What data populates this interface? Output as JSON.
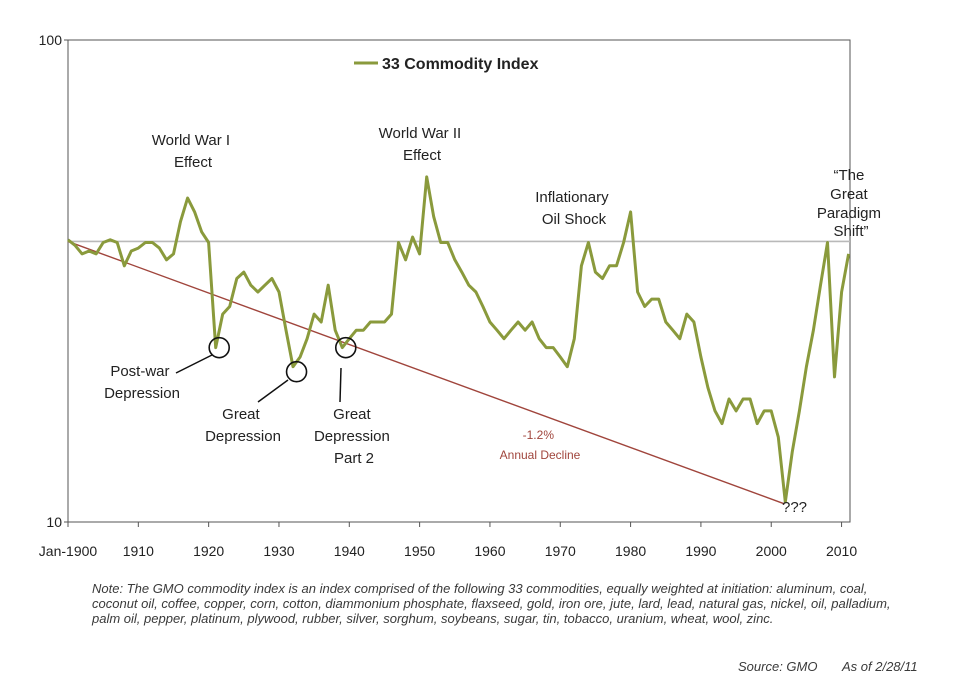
{
  "chart_data": {
    "type": "line",
    "log_scale_y": true,
    "ylim": [
      10,
      100
    ],
    "xlim": [
      1900,
      2011.2
    ],
    "y_tick_labels": [
      "100",
      "10"
    ],
    "x_tick_labels": [
      "Jan-1900",
      "1910",
      "1920",
      "1930",
      "1940",
      "1950",
      "1960",
      "1970",
      "1980",
      "1990",
      "2000",
      "2010"
    ],
    "legend": {
      "label": "33 Commodity Index",
      "placement": "top-center"
    },
    "line_color": "#8a9a3c",
    "trend_color": "#a0453c",
    "reference_color": "#b9b9b9",
    "reference_level": 38.2,
    "trend": {
      "x": [
        1900,
        2001.9
      ],
      "y": [
        38.2,
        10.9
      ]
    },
    "series": [
      {
        "name": "33 Commodity Index",
        "x": [
          1900,
          1901,
          1902,
          1903,
          1904,
          1905,
          1906,
          1907,
          1908,
          1909,
          1910,
          1911,
          1912,
          1913,
          1914,
          1915,
          1916,
          1917,
          1918,
          1919,
          1920,
          1921,
          1922,
          1923,
          1924,
          1925,
          1926,
          1927,
          1928,
          1929,
          1930,
          1931,
          1932,
          1933,
          1934,
          1935,
          1936,
          1937,
          1938,
          1939,
          1940,
          1941,
          1942,
          1943,
          1944,
          1945,
          1946,
          1947,
          1948,
          1949,
          1950,
          1951,
          1952,
          1953,
          1954,
          1955,
          1956,
          1957,
          1958,
          1959,
          1960,
          1961,
          1962,
          1963,
          1964,
          1965,
          1966,
          1967,
          1968,
          1969,
          1970,
          1971,
          1972,
          1973,
          1974,
          1975,
          1976,
          1977,
          1978,
          1979,
          1980,
          1981,
          1982,
          1983,
          1984,
          1985,
          1986,
          1987,
          1988,
          1989,
          1990,
          1991,
          1992,
          1993,
          1994,
          1995,
          1996,
          1997,
          1998,
          1999,
          2000,
          2001,
          2002,
          2003,
          2004,
          2005,
          2006,
          2007,
          2008,
          2009,
          2010,
          2011
        ],
        "y": [
          38.5,
          37.5,
          36,
          36.5,
          36,
          38,
          38.5,
          38,
          34,
          36.5,
          37,
          38,
          38,
          37,
          35,
          36,
          42,
          47,
          44,
          40,
          38,
          23,
          27,
          28,
          32,
          33,
          31,
          30,
          31,
          32,
          30,
          25,
          21,
          22,
          24,
          27,
          26,
          31,
          25,
          23,
          24,
          25,
          25,
          26,
          26,
          26,
          27,
          38,
          35,
          39,
          36,
          52,
          43,
          38,
          38,
          35,
          33,
          31,
          30,
          28,
          26,
          25,
          24,
          25,
          26,
          25,
          26,
          24,
          23,
          23,
          22,
          21,
          24,
          34,
          38,
          33,
          32,
          34,
          34,
          38,
          44,
          30,
          28,
          29,
          29,
          26,
          25,
          24,
          27,
          26,
          22,
          19,
          17,
          16,
          18,
          17,
          18,
          18,
          16,
          17,
          17,
          15,
          11,
          14,
          17,
          21,
          25,
          31,
          38,
          20,
          30,
          36
        ]
      }
    ],
    "annotations": [
      {
        "text": [
          "World War I",
          "Effect"
        ]
      },
      {
        "text": [
          "World War II",
          "Effect"
        ]
      },
      {
        "text": [
          "Inflationary",
          "Oil Shock"
        ]
      },
      {
        "text": [
          "“The",
          "Great",
          "Paradigm",
          "Shift”"
        ]
      },
      {
        "text": [
          "Post-war",
          "Depression"
        ]
      },
      {
        "text": [
          "Great",
          "Depression"
        ]
      },
      {
        "text": [
          "Great",
          "Depression",
          "Part 2"
        ]
      },
      {
        "text": [
          "-1.2%",
          "Annual Decline"
        ]
      },
      {
        "text": [
          "???"
        ]
      }
    ],
    "circle_markers": [
      {
        "x": 1921.5,
        "y": 23
      },
      {
        "x": 1932.5,
        "y": 20.5
      },
      {
        "x": 1939.5,
        "y": 23
      }
    ]
  },
  "note": "Note: The GMO commodity index is an index comprised of the following 33 commodities, equally weighted at initiation:  aluminum, coal, coconut oil, coffee, copper, corn, cotton, diammonium phosphate, flaxseed, gold, iron ore, jute, lard, lead, natural gas, nickel, oil, palladium, palm oil, pepper, platinum, plywood, rubber, silver, sorghum, soybeans, sugar, tin, tobacco, uranium, wheat, wool, zinc.",
  "source": "Source:  GMO",
  "as_of": "As of 2/28/11"
}
